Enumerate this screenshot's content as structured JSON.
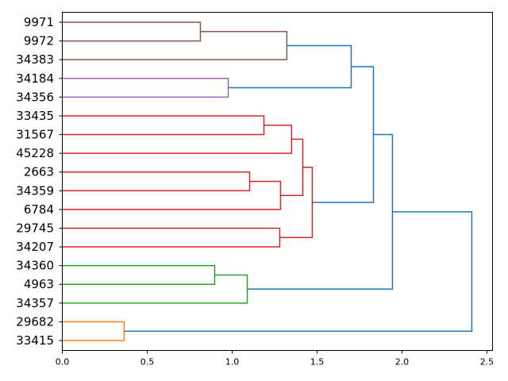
{
  "chart_data": {
    "type": "dendrogram",
    "orientation": "right",
    "title": "",
    "xlabel": "",
    "ylabel": "",
    "xlim": [
      0,
      2.533
    ],
    "xticks": [
      0.0,
      0.5,
      1.0,
      1.5,
      2.0,
      2.5
    ],
    "xtick_labels": [
      "0.0",
      "0.5",
      "1.0",
      "1.5",
      "2.0",
      "2.5"
    ],
    "leaves": [
      "9971",
      "9972",
      "34383",
      "34184",
      "34356",
      "33435",
      "31567",
      "45228",
      "2663",
      "34359",
      "6784",
      "29745",
      "34207",
      "34360",
      "4963",
      "34357",
      "29682",
      "33415"
    ],
    "merges": [
      {
        "left": 0,
        "right": 1,
        "height": 0.813,
        "color": "#8c564b"
      },
      {
        "left": 18,
        "right": 2,
        "height": 1.322,
        "color": "#8c564b"
      },
      {
        "left": 3,
        "right": 4,
        "height": 0.977,
        "color": "#9467bd"
      },
      {
        "left": 19,
        "right": 20,
        "height": 1.701,
        "color": "#1f77b4"
      },
      {
        "left": 5,
        "right": 6,
        "height": 1.187,
        "color": "#d62728"
      },
      {
        "left": 22,
        "right": 7,
        "height": 1.35,
        "color": "#d62728"
      },
      {
        "left": 8,
        "right": 9,
        "height": 1.103,
        "color": "#d62728"
      },
      {
        "left": 24,
        "right": 10,
        "height": 1.285,
        "color": "#d62728"
      },
      {
        "left": 23,
        "right": 25,
        "height": 1.416,
        "color": "#d62728"
      },
      {
        "left": 11,
        "right": 12,
        "height": 1.28,
        "color": "#d62728"
      },
      {
        "left": 26,
        "right": 27,
        "height": 1.472,
        "color": "#d62728"
      },
      {
        "left": 21,
        "right": 28,
        "height": 1.832,
        "color": "#1f77b4"
      },
      {
        "left": 13,
        "right": 14,
        "height": 0.897,
        "color": "#2ca02c"
      },
      {
        "left": 30,
        "right": 15,
        "height": 1.089,
        "color": "#2ca02c"
      },
      {
        "left": 29,
        "right": 31,
        "height": 1.944,
        "color": "#1f77b4"
      },
      {
        "left": 16,
        "right": 17,
        "height": 0.364,
        "color": "#ff7f0e"
      },
      {
        "left": 32,
        "right": 33,
        "height": 2.411,
        "color": "#1f77b4"
      }
    ]
  }
}
